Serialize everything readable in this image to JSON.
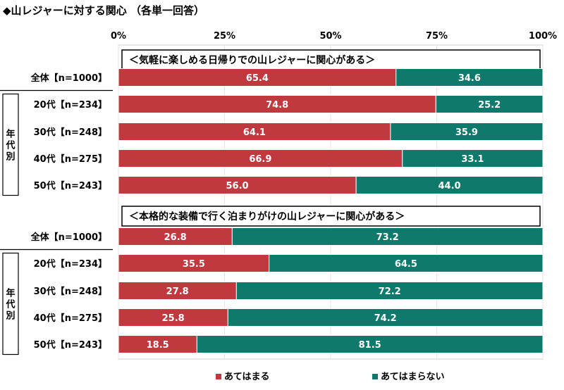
{
  "title": "◆山レジャーに対する関心 （各単一回答）",
  "chart_data": {
    "type": "bar",
    "orientation": "horizontal",
    "stacked": true,
    "percent_stacked": true,
    "xlim": [
      0,
      100
    ],
    "x_ticks": [
      "0%",
      "25%",
      "50%",
      "75%",
      "100%"
    ],
    "legend": [
      "あてはまる",
      "あてはまらない"
    ],
    "legend_placement": "bottom",
    "group_label": "年代別",
    "colors": {
      "agree": "#c0393f",
      "disagree": "#0f7a6c"
    },
    "sections": [
      {
        "title": "＜気軽に楽しめる日帰りでの山レジャーに関心がある＞",
        "rows": [
          {
            "label": "全体【n=1000】",
            "values": [
              65.4,
              34.6
            ],
            "display": [
              "65.4",
              "34.6"
            ]
          },
          {
            "label": "20代【n=234】",
            "values": [
              74.8,
              25.2
            ],
            "display": [
              "74.8",
              "25.2"
            ]
          },
          {
            "label": "30代【n=248】",
            "values": [
              64.1,
              35.9
            ],
            "display": [
              "64.1",
              "35.9"
            ]
          },
          {
            "label": "40代【n=275】",
            "values": [
              66.9,
              33.1
            ],
            "display": [
              "66.9",
              "33.1"
            ]
          },
          {
            "label": "50代【n=243】",
            "values": [
              56.0,
              44.0
            ],
            "display": [
              "56.0",
              "44.0"
            ]
          }
        ]
      },
      {
        "title": "＜本格的な装備で行く泊まりがけの山レジャーに関心がある＞",
        "rows": [
          {
            "label": "全体【n=1000】",
            "values": [
              26.8,
              73.2
            ],
            "display": [
              "26.8",
              "73.2"
            ]
          },
          {
            "label": "20代【n=234】",
            "values": [
              35.5,
              64.5
            ],
            "display": [
              "35.5",
              "64.5"
            ]
          },
          {
            "label": "30代【n=248】",
            "values": [
              27.8,
              72.2
            ],
            "display": [
              "27.8",
              "72.2"
            ]
          },
          {
            "label": "40代【n=275】",
            "values": [
              25.8,
              74.2
            ],
            "display": [
              "25.8",
              "74.2"
            ]
          },
          {
            "label": "50代【n=243】",
            "values": [
              18.5,
              81.5
            ],
            "display": [
              "18.5",
              "81.5"
            ]
          }
        ]
      }
    ]
  }
}
